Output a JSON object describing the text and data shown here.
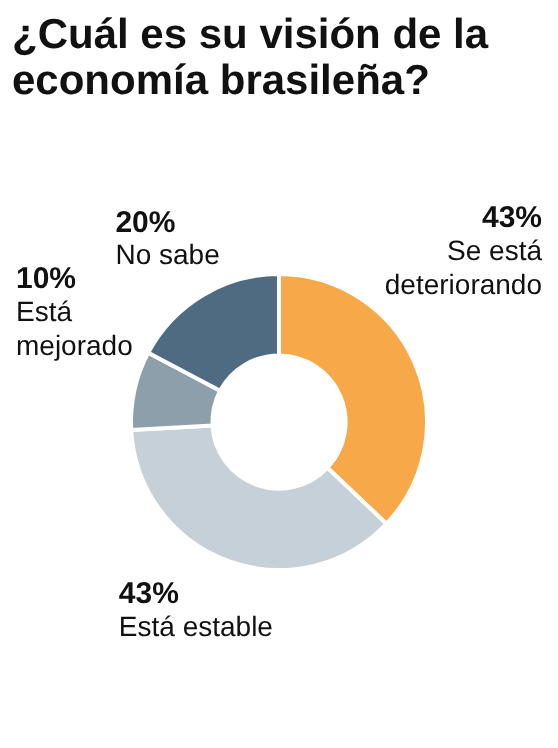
{
  "chart_data": {
    "type": "donut",
    "title": "¿Cuál es su visión de la economía brasileña?",
    "categories": [
      "Se está deteriorando",
      "Está estable",
      "Está mejorado",
      "No sabe"
    ],
    "values": [
      43,
      43,
      10,
      20
    ],
    "value_labels": [
      "43%",
      "43%",
      "10%",
      "20%"
    ],
    "colors": [
      "#f7a94a",
      "#c5d0d9",
      "#8e9fac",
      "#4f6b81"
    ],
    "legend": false
  }
}
